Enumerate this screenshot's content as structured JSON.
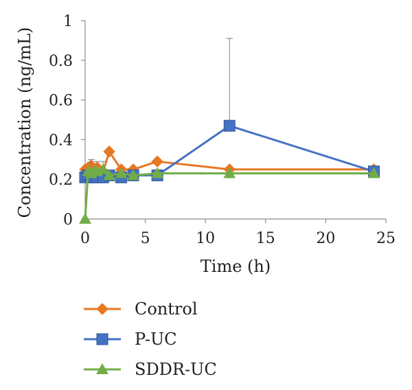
{
  "chart_data": {
    "type": "line",
    "title": "",
    "xlabel": "Time (h)",
    "ylabel": "Concentration (ng/mL)",
    "xlim": [
      0,
      25
    ],
    "ylim": [
      0,
      1
    ],
    "xticks": [
      0,
      5,
      10,
      15,
      20,
      25
    ],
    "yticks": [
      0,
      0.2,
      0.4,
      0.6,
      0.8,
      1
    ],
    "ytick_labels": [
      "0",
      "0.2",
      "0.4",
      "0.6",
      "0.8",
      "1"
    ],
    "grid": false,
    "legend_position": "bottom",
    "series": [
      {
        "name": "Control",
        "color": "#e87722",
        "marker": "diamond",
        "x": [
          0,
          0.25,
          0.5,
          0.75,
          1,
          1.5,
          2,
          3,
          4,
          6,
          12,
          24
        ],
        "y": [
          0.25,
          0.26,
          0.27,
          0.25,
          0.26,
          0.24,
          0.34,
          0.25,
          0.25,
          0.29,
          0.25,
          0.25
        ]
      },
      {
        "name": "P-UC",
        "color": "#4472c4",
        "marker": "square",
        "x": [
          0,
          0.25,
          0.5,
          0.75,
          1,
          1.5,
          2,
          3,
          4,
          6,
          12,
          24
        ],
        "y": [
          0.21,
          0.22,
          0.22,
          0.21,
          0.21,
          0.21,
          0.22,
          0.21,
          0.22,
          0.22,
          0.47,
          0.24
        ],
        "error_upper": [
          0,
          0,
          0.08,
          0,
          0.08,
          0.08,
          0,
          0,
          0,
          0,
          0.44,
          0
        ]
      },
      {
        "name": "SDDR-UC",
        "color": "#70ad47",
        "marker": "triangle",
        "x": [
          0,
          0.25,
          0.5,
          0.75,
          1,
          1.5,
          2,
          3,
          4,
          6,
          12,
          24
        ],
        "y": [
          0,
          0.24,
          0.23,
          0.24,
          0.24,
          0.25,
          0.22,
          0.23,
          0.22,
          0.23,
          0.23,
          0.23
        ]
      }
    ]
  }
}
